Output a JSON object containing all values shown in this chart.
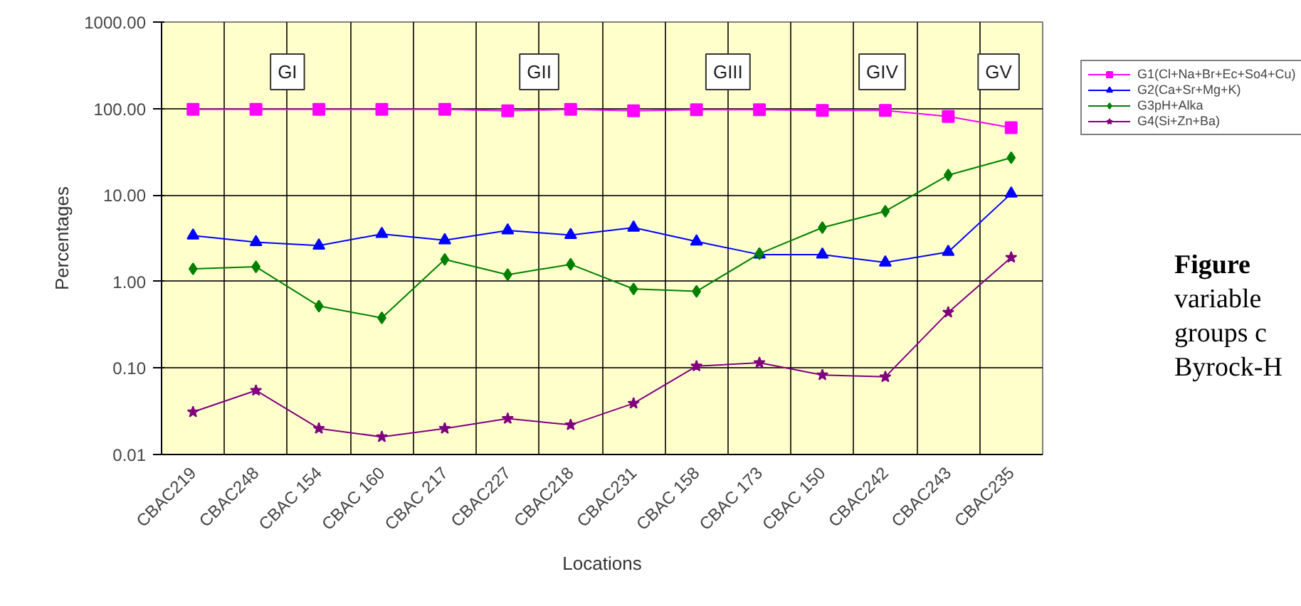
{
  "chart_data": {
    "type": "line",
    "xlabel": "Locations",
    "ylabel": "Percentages",
    "categories": [
      "CBAC219",
      "CBAC248",
      "CBAC 154",
      "CBAC 160",
      "CBAC 217",
      "CBAC227",
      "CBAC218",
      "CBAC231",
      "CBAC 158",
      "CBAC 173",
      "CBAC 150",
      "CBAC242",
      "CBAC243",
      "CBAC235"
    ],
    "series": [
      {
        "name": "G1(Cl+Na+Br+Ec+So4+Cu)",
        "color": "#ff00ff",
        "marker": "square",
        "values": [
          98,
          98,
          98,
          98,
          98,
          94,
          98,
          94,
          97,
          97,
          95,
          95,
          81,
          60
        ]
      },
      {
        "name": "G2(Ca+Sr+Mg+K)",
        "color": "#0000ff",
        "marker": "triangle",
        "values": [
          3.4,
          2.85,
          2.6,
          3.55,
          3.0,
          3.9,
          3.45,
          4.2,
          2.9,
          2.05,
          2.05,
          1.66,
          2.2,
          10.4
        ]
      },
      {
        "name": "G3pH+Alka",
        "color": "#008000",
        "marker": "diamond",
        "values": [
          1.4,
          1.48,
          0.52,
          0.38,
          1.8,
          1.2,
          1.58,
          0.82,
          0.77,
          2.1,
          4.2,
          6.5,
          17,
          27
        ]
      },
      {
        "name": "G4(Si+Zn+Ba)",
        "color": "#800080",
        "marker": "star",
        "values": [
          0.031,
          0.055,
          0.02,
          0.016,
          0.02,
          0.026,
          0.022,
          0.039,
          0.105,
          0.115,
          0.083,
          0.079,
          0.44,
          1.9
        ]
      }
    ],
    "log": "y",
    "ylim": [
      0.01,
      1000
    ],
    "yticks": [
      {
        "value": 0.01,
        "label": "0.01"
      },
      {
        "value": 0.1,
        "label": "0.10"
      },
      {
        "value": 1,
        "label": "1.00"
      },
      {
        "value": 10,
        "label": "10.00"
      },
      {
        "value": 100,
        "label": "100.00"
      },
      {
        "value": 1000,
        "label": "1000.00"
      }
    ],
    "grid": true,
    "legend": "top right",
    "line_style": "solid",
    "annotations": [
      "GI",
      "GII",
      "GIII",
      "GIV",
      "GV",
      "Figure",
      "variable",
      "groups c",
      "Byrock-H"
    ]
  }
}
